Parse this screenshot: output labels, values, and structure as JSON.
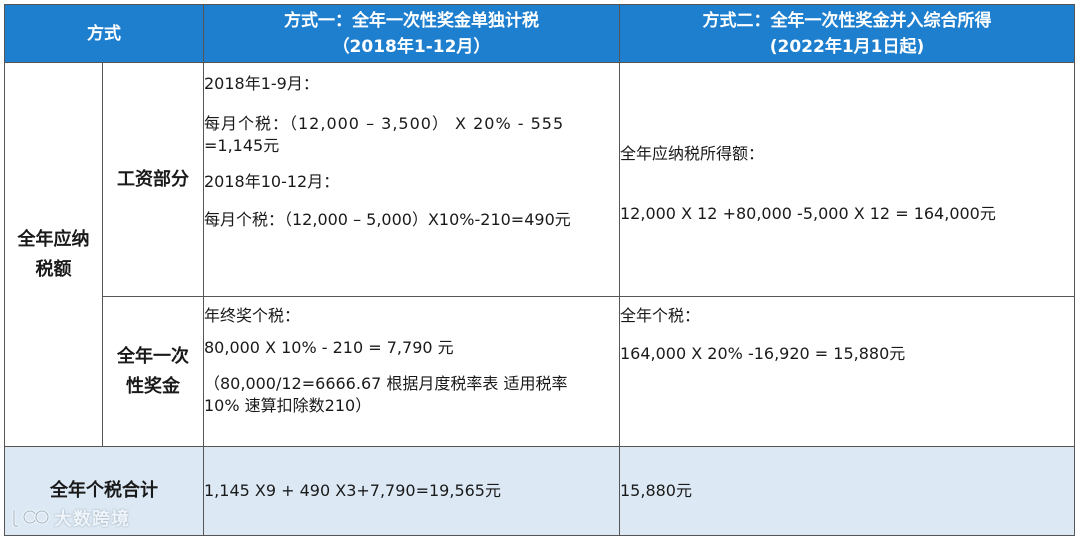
{
  "header": {
    "method_label": "方式",
    "option1_title": "方式一：全年一次性奖金单独计税",
    "option1_period": "（2018年1-12月）",
    "option2_title": "方式二：全年一次性奖金并入综合所得",
    "option2_period": "(2022年1月1日起)"
  },
  "taxable_row": {
    "label_line1": "全年应纳",
    "label_line2": "税额",
    "salary": {
      "label": "工资部分",
      "option1": {
        "period1": "2018年1-9月：",
        "calc1_line1": "每月个税：（12,000 – 3,500） X 20% - 555",
        "calc1_line2": "=1,145元",
        "period2": "2018年10-12月：",
        "calc2": "每月个税：（12,000 – 5,000）X10%-210=490元"
      }
    },
    "bonus": {
      "label_line1": "全年一次",
      "label_line2": "性奖金",
      "option1": {
        "title": "年终奖个税：",
        "calc": "80,000 X 10% - 210 = 7,790 元",
        "note_line1": "（80,000/12=6666.67 根据月度税率表 适用税率",
        "note_line2": "10%  速算扣除数210）"
      }
    },
    "option2_income": {
      "title": "全年应纳税所得额：",
      "calc": " 12,000 X 12 +80,000 -5,000 X 12 = 164,000元"
    },
    "option2_tax": {
      "title": "全年个税：",
      "calc": "164,000 X 20% -16,920 = 15,880元"
    }
  },
  "total_row": {
    "label": "全年个税合计",
    "option1": "1,145 X9 + 490 X3+7,790=19,565元",
    "option2": "15,880元"
  },
  "watermark": {
    "text": "大数跨境"
  },
  "colors": {
    "header_bg": "#1f7fcf",
    "total_bg": "#dce9f4",
    "border": "#555555"
  }
}
